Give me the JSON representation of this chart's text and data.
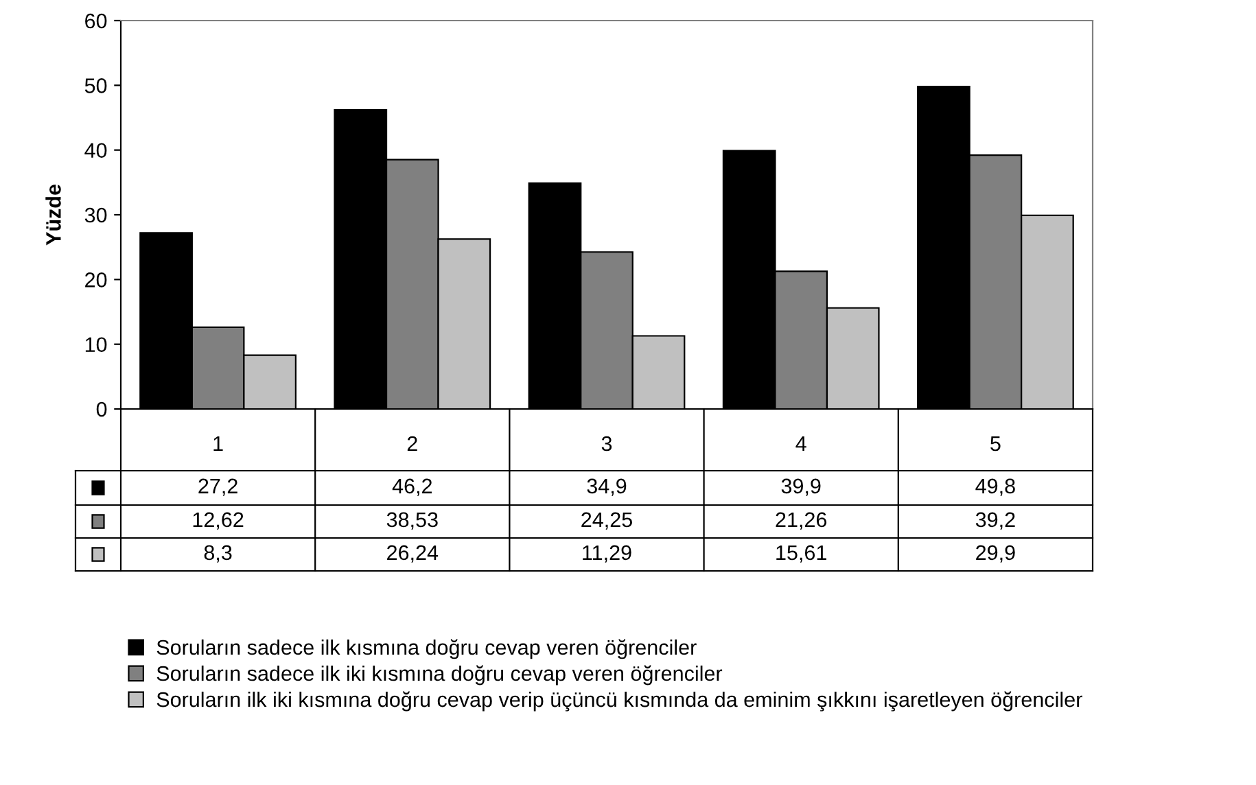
{
  "chart_data": {
    "type": "bar",
    "ylabel": "Yüzde",
    "categories": [
      "1",
      "2",
      "3",
      "4",
      "5"
    ],
    "series": [
      {
        "name": "Soruların sadece ilk kısmına doğru cevap veren öğrenciler",
        "color": "#000000",
        "values": [
          27.2,
          46.2,
          34.9,
          39.9,
          49.8
        ],
        "value_labels": [
          "27,2",
          "46,2",
          "34,9",
          "39,9",
          "49,8"
        ]
      },
      {
        "name": "Soruların sadece ilk iki kısmına doğru cevap veren öğrenciler",
        "color": "#808080",
        "values": [
          12.62,
          38.53,
          24.25,
          21.26,
          39.2
        ],
        "value_labels": [
          "12,62",
          "38,53",
          "24,25",
          "21,26",
          "39,2"
        ]
      },
      {
        "name": "Soruların ilk iki kısmına doğru cevap verip üçüncü kısmında da eminim şıkkını işaretleyen öğrenciler",
        "color": "#c0c0c0",
        "values": [
          8.3,
          26.24,
          11.29,
          15.61,
          29.9
        ],
        "value_labels": [
          "8,3",
          "26,24",
          "11,29",
          "15,61",
          "29,9"
        ]
      }
    ],
    "ylim": [
      0,
      60
    ],
    "yticks": [
      0,
      10,
      20,
      30,
      40,
      50,
      60
    ],
    "grid": false,
    "legend": "bottom"
  }
}
